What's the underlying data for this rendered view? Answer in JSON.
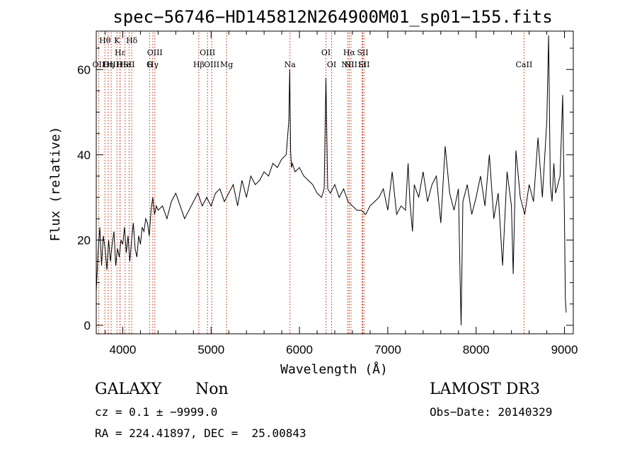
{
  "chart_data": {
    "type": "line",
    "title": "spec−56746−HD145812N264900M01_sp01−155.fits",
    "xlabel": "Wavelength (Å)",
    "ylabel": "Flux (relative)",
    "xlim": [
      3700,
      9100
    ],
    "ylim": [
      -2,
      69
    ],
    "xticks": [
      4000,
      5000,
      6000,
      7000,
      8000,
      9000
    ],
    "yticks": [
      0,
      20,
      40,
      60
    ],
    "grid": false,
    "line_color": "#000000",
    "marker_color": "#cc2200",
    "spectrum": {
      "x": [
        3700,
        3720,
        3740,
        3760,
        3780,
        3800,
        3820,
        3840,
        3860,
        3880,
        3900,
        3920,
        3940,
        3960,
        3980,
        4000,
        4020,
        4040,
        4060,
        4080,
        4100,
        4120,
        4140,
        4160,
        4180,
        4200,
        4220,
        4240,
        4260,
        4280,
        4300,
        4320,
        4340,
        4360,
        4380,
        4400,
        4450,
        4500,
        4550,
        4600,
        4650,
        4700,
        4750,
        4800,
        4850,
        4900,
        4950,
        5000,
        5050,
        5100,
        5150,
        5200,
        5250,
        5300,
        5350,
        5400,
        5450,
        5500,
        5550,
        5600,
        5650,
        5700,
        5750,
        5800,
        5850,
        5880,
        5890,
        5900,
        5910,
        5920,
        5950,
        6000,
        6050,
        6100,
        6150,
        6200,
        6250,
        6280,
        6300,
        6320,
        6350,
        6400,
        6450,
        6500,
        6550,
        6600,
        6650,
        6700,
        6750,
        6800,
        6850,
        6900,
        6950,
        7000,
        7050,
        7100,
        7150,
        7200,
        7230,
        7250,
        7280,
        7300,
        7350,
        7400,
        7450,
        7500,
        7550,
        7600,
        7650,
        7700,
        7750,
        7800,
        7820,
        7830,
        7850,
        7900,
        7950,
        8000,
        8050,
        8100,
        8150,
        8200,
        8250,
        8300,
        8350,
        8400,
        8420,
        8450,
        8500,
        8550,
        8600,
        8650,
        8700,
        8750,
        8800,
        8820,
        8840,
        8860,
        8880,
        8900,
        8950,
        8980,
        9000,
        9010,
        9020
      ],
      "y": [
        8,
        17,
        23,
        14,
        21,
        18,
        13,
        20,
        15,
        19,
        22,
        14,
        18,
        16,
        20,
        19,
        23,
        17,
        21,
        15,
        20,
        24,
        18,
        16,
        21,
        19,
        23,
        22,
        25,
        24,
        21,
        27,
        30,
        26,
        28,
        27,
        28,
        25,
        29,
        31,
        28,
        25,
        27,
        29,
        31,
        28,
        30,
        28,
        31,
        32,
        29,
        31,
        33,
        28,
        34,
        30,
        35,
        33,
        34,
        36,
        35,
        38,
        37,
        39,
        40,
        48,
        60,
        41,
        37,
        38,
        36,
        37,
        35,
        34,
        33,
        31,
        30,
        32,
        58,
        32,
        31,
        33,
        30,
        32,
        29,
        28,
        27,
        27,
        26,
        28,
        29,
        30,
        32,
        27,
        36,
        26,
        28,
        27,
        38,
        29,
        22,
        33,
        30,
        36,
        29,
        33,
        35,
        24,
        42,
        31,
        27,
        32,
        10,
        0,
        29,
        33,
        26,
        30,
        35,
        28,
        40,
        25,
        31,
        14,
        36,
        28,
        12,
        41,
        30,
        26,
        33,
        29,
        44,
        30,
        48,
        68,
        33,
        29,
        38,
        31,
        35,
        54,
        25,
        6,
        3
      ]
    },
    "lines": [
      {
        "label": "OII",
        "wavelength": 3727,
        "row": 2
      },
      {
        "label": "Hθ",
        "wavelength": 3798,
        "row": 0
      },
      {
        "label": "OIII",
        "wavelength": 3869,
        "row": 3
      },
      {
        "label": "Hε",
        "wavelength": 3970,
        "row": 1
      },
      {
        "label": "Hη",
        "wavelength": 3835,
        "row": 3
      },
      {
        "label": "He",
        "wavelength": 4026,
        "row": 2
      },
      {
        "label": "K",
        "wavelength": 3934,
        "row": 0
      },
      {
        "label": "H",
        "wavelength": 3968,
        "row": 3
      },
      {
        "label": "Hδ",
        "wavelength": 4102,
        "row": 0
      },
      {
        "label": "SII",
        "wavelength": 4072,
        "row": 2
      },
      {
        "label": "OIII",
        "wavelength": 4363,
        "row": 1
      },
      {
        "label": "Hγ",
        "wavelength": 4340,
        "row": 2
      },
      {
        "label": "G",
        "wavelength": 4304,
        "row": 3
      },
      {
        "label": "Hβ",
        "wavelength": 4861,
        "row": 3
      },
      {
        "label": "OIII",
        "wavelength": 4959,
        "row": 1
      },
      {
        "label": "OIII",
        "wavelength": 5007,
        "row": 2
      },
      {
        "label": "Mg",
        "wavelength": 5175,
        "row": 3
      },
      {
        "label": "Na",
        "wavelength": 5893,
        "row": 2
      },
      {
        "label": "OI",
        "wavelength": 6300,
        "row": 1
      },
      {
        "label": "OI",
        "wavelength": 6364,
        "row": 3
      },
      {
        "label": "Hα",
        "wavelength": 6563,
        "row": 1
      },
      {
        "label": "NII",
        "wavelength": 6548,
        "row": 2
      },
      {
        "label": "NII",
        "wavelength": 6583,
        "row": 3
      },
      {
        "label": "SII",
        "wavelength": 6716,
        "row": 1
      },
      {
        "label": "Li",
        "wavelength": 6708,
        "row": 2
      },
      {
        "label": "SII",
        "wavelength": 6731,
        "row": 3
      },
      {
        "label": "CaII",
        "wavelength": 8542,
        "row": 2
      }
    ]
  },
  "info": {
    "class": "GALAXY",
    "subclass": "Non",
    "survey": "LAMOST DR3",
    "cz_line": "cz = 0.1 ± −9999.0",
    "obs_date": "Obs−Date: 20140329",
    "coords": "RA = 224.41897, DEC =  25.00843"
  }
}
